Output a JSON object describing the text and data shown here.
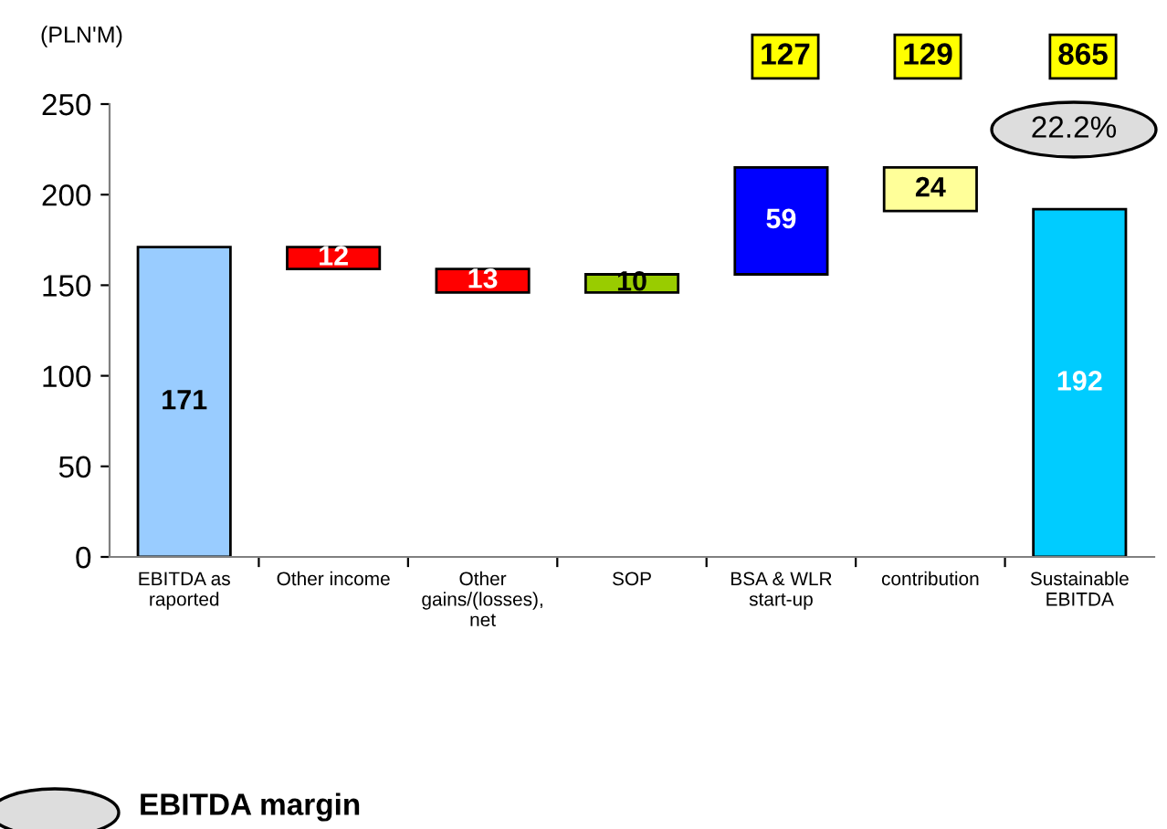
{
  "chart_data": {
    "type": "bar",
    "ylabel": "(PLN'M)",
    "categories": [
      "EBITDA as\nraported",
      "Other income",
      "Other\ngains/(losses),\nnet",
      "SOP",
      "BSA & WLR\nstart-up",
      "contribution",
      "Sustainable\nEBITDA"
    ],
    "values": [
      171,
      12,
      13,
      10,
      59,
      24,
      192
    ],
    "base": [
      0,
      159,
      146,
      146,
      156,
      191,
      0
    ],
    "colors": [
      "#99ccff",
      "#ff0000",
      "#ff0000",
      "#99cc00",
      "#0000ff",
      "#ffff99",
      "#00ccff"
    ],
    "ylim": [
      0,
      250
    ],
    "yticks": [
      0,
      50,
      100,
      150,
      200,
      250
    ],
    "grid": false,
    "data_labels": true,
    "annotations": [
      "127",
      "129",
      "865",
      "22.2%",
      "EBITDA margin"
    ]
  }
}
